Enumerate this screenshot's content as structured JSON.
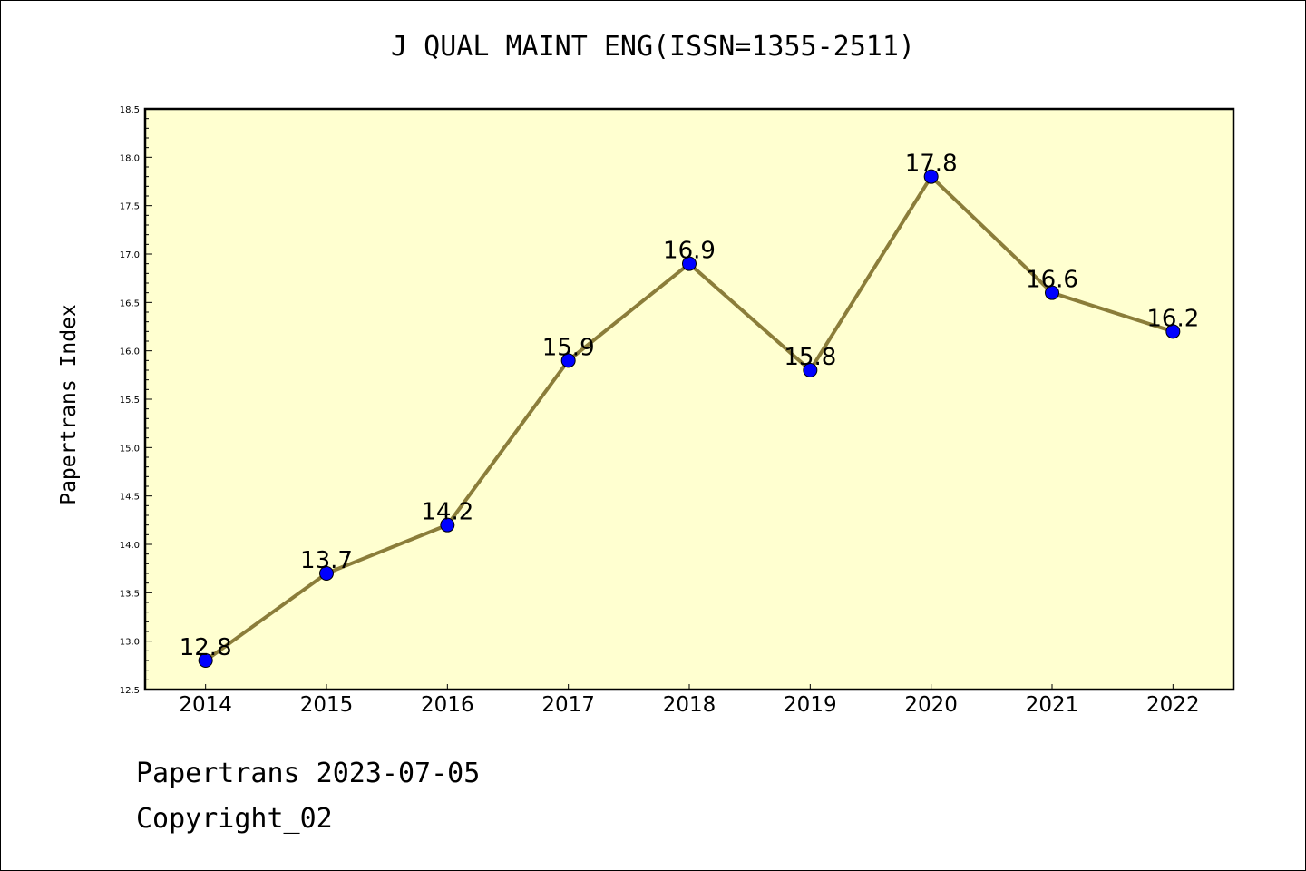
{
  "chart_data": {
    "type": "line",
    "title": "J QUAL MAINT ENG(ISSN=1355-2511)",
    "xlabel": "",
    "ylabel": "Papertrans Index",
    "categories": [
      "2014",
      "2015",
      "2016",
      "2017",
      "2018",
      "2019",
      "2020",
      "2021",
      "2022"
    ],
    "series": [
      {
        "values": [
          12.8,
          13.7,
          14.2,
          15.9,
          16.9,
          15.8,
          17.8,
          16.6,
          16.2
        ],
        "point_labels": [
          "12.8",
          "13.7",
          "14.2",
          "15.9",
          "16.9",
          "15.8",
          "17.8",
          "16.6",
          "16.2"
        ]
      }
    ],
    "ylim": [
      12.5,
      18.5
    ],
    "yticks": [
      "12.5",
      "13.0",
      "13.5",
      "14.0",
      "14.5",
      "15.0",
      "15.5",
      "16.0",
      "16.5",
      "17.0",
      "17.5",
      "18.0",
      "18.5"
    ],
    "grid": false,
    "legend": "none",
    "colors": {
      "plot_background": "#ffffd0",
      "line": "#8b7d3a",
      "marker": "#0000ff"
    }
  },
  "footer": {
    "line1": "Papertrans 2023-07-05",
    "line2": "Copyright_02"
  }
}
